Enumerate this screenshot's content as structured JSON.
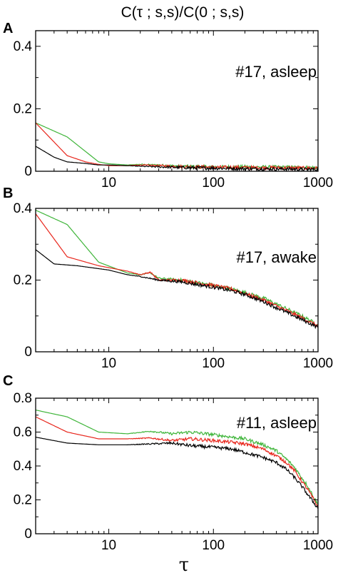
{
  "figure": {
    "title": "C(τ ; s,s)/C(0 ; s,s)",
    "xlabel": "τ"
  },
  "colors": {
    "black": "#000000",
    "red": "#e8261c",
    "green": "#3fb53a"
  },
  "chart_data": [
    {
      "type": "line",
      "panel": "A",
      "annotation": "#17, asleep",
      "xscale": "log",
      "xlim": [
        2,
        1000
      ],
      "ylim": [
        0,
        0.45
      ],
      "xticks": [
        "10",
        "100",
        "1000"
      ],
      "yticks": [
        "0",
        "0.2",
        "0.4"
      ],
      "grid": false,
      "series": [
        {
          "color": "green",
          "x": [
            2,
            4,
            8,
            10,
            15,
            20,
            30,
            50,
            100,
            200,
            500,
            1000
          ],
          "y": [
            0.155,
            0.11,
            0.03,
            0.024,
            0.02,
            0.022,
            0.02,
            0.016,
            0.014,
            0.014,
            0.013,
            0.012
          ]
        },
        {
          "color": "red",
          "x": [
            2,
            4,
            6,
            8,
            10,
            15,
            20,
            30,
            50,
            100,
            200,
            500,
            1000
          ],
          "y": [
            0.155,
            0.05,
            0.03,
            0.022,
            0.018,
            0.018,
            0.02,
            0.018,
            0.015,
            0.013,
            0.012,
            0.011,
            0.01
          ]
        },
        {
          "color": "black",
          "x": [
            2,
            3,
            4,
            6,
            8,
            10,
            15,
            20,
            30,
            50,
            100,
            200,
            500,
            1000
          ],
          "y": [
            0.08,
            0.045,
            0.03,
            0.025,
            0.02,
            0.02,
            0.018,
            0.016,
            0.014,
            0.012,
            0.01,
            0.008,
            0.007,
            0.006
          ]
        }
      ]
    },
    {
      "type": "line",
      "panel": "B",
      "annotation": "#17, awake",
      "xscale": "log",
      "xlim": [
        2,
        1000
      ],
      "ylim": [
        0,
        0.4
      ],
      "xticks": [
        "10",
        "100",
        "1000"
      ],
      "yticks": [
        "0",
        "0.2",
        "0.4"
      ],
      "grid": false,
      "series": [
        {
          "color": "green",
          "x": [
            2,
            4,
            8,
            15,
            20,
            25,
            30,
            50,
            100,
            150,
            200,
            300,
            500,
            700,
            1000
          ],
          "y": [
            0.395,
            0.355,
            0.25,
            0.22,
            0.215,
            0.22,
            0.205,
            0.2,
            0.185,
            0.175,
            0.165,
            0.15,
            0.12,
            0.1,
            0.075
          ]
        },
        {
          "color": "red",
          "x": [
            2,
            4,
            8,
            15,
            20,
            25,
            30,
            50,
            100,
            150,
            200,
            300,
            500,
            700,
            1000
          ],
          "y": [
            0.385,
            0.265,
            0.24,
            0.225,
            0.215,
            0.222,
            0.2,
            0.2,
            0.185,
            0.175,
            0.162,
            0.145,
            0.115,
            0.095,
            0.072
          ]
        },
        {
          "color": "black",
          "x": [
            2,
            3,
            5,
            10,
            15,
            20,
            30,
            50,
            100,
            150,
            200,
            300,
            500,
            700,
            1000
          ],
          "y": [
            0.285,
            0.245,
            0.24,
            0.228,
            0.215,
            0.21,
            0.2,
            0.195,
            0.18,
            0.17,
            0.16,
            0.14,
            0.11,
            0.09,
            0.068
          ]
        }
      ]
    },
    {
      "type": "line",
      "panel": "C",
      "annotation": "#11, asleep",
      "xscale": "log",
      "xlim": [
        2,
        1000
      ],
      "ylim": [
        0,
        0.8
      ],
      "xticks": [
        "10",
        "100",
        "1000"
      ],
      "yticks": [
        "0",
        "0.2",
        "0.4",
        "0.6",
        "0.8"
      ],
      "grid": false,
      "series": [
        {
          "color": "green",
          "x": [
            2,
            4,
            8,
            15,
            25,
            40,
            60,
            100,
            150,
            200,
            300,
            400,
            500,
            600,
            700,
            800,
            1000
          ],
          "y": [
            0.73,
            0.69,
            0.6,
            0.59,
            0.605,
            0.59,
            0.6,
            0.585,
            0.57,
            0.56,
            0.525,
            0.49,
            0.44,
            0.39,
            0.33,
            0.28,
            0.17
          ]
        },
        {
          "color": "red",
          "x": [
            2,
            4,
            8,
            15,
            25,
            40,
            60,
            100,
            150,
            200,
            300,
            400,
            500,
            600,
            700,
            800,
            1000
          ],
          "y": [
            0.69,
            0.6,
            0.56,
            0.56,
            0.565,
            0.55,
            0.56,
            0.55,
            0.54,
            0.53,
            0.5,
            0.46,
            0.42,
            0.37,
            0.31,
            0.26,
            0.16
          ]
        },
        {
          "color": "black",
          "x": [
            2,
            4,
            8,
            15,
            25,
            40,
            60,
            100,
            150,
            200,
            300,
            400,
            500,
            600,
            700,
            800,
            1000
          ],
          "y": [
            0.57,
            0.535,
            0.525,
            0.525,
            0.53,
            0.535,
            0.52,
            0.51,
            0.5,
            0.48,
            0.45,
            0.42,
            0.38,
            0.33,
            0.28,
            0.23,
            0.15
          ]
        }
      ]
    }
  ]
}
